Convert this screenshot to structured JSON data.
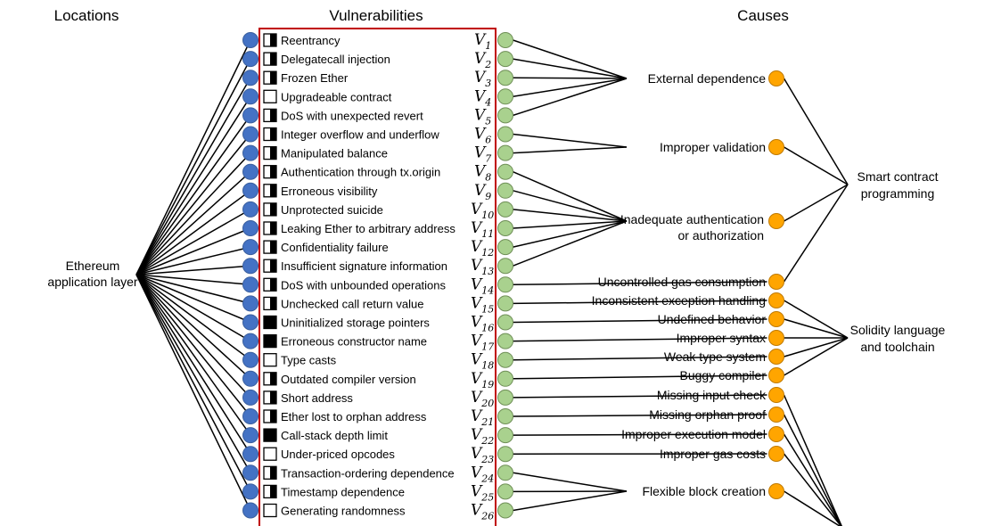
{
  "headers": {
    "locations": "Locations",
    "vulnerabilities": "Vulnerabilities",
    "causes": "Causes"
  },
  "location": {
    "line1": "Ethereum",
    "line2": "application layer"
  },
  "colors": {
    "location_node": "#4472C4",
    "vulnerability_node": "#A9D18E",
    "cause_node": "#FFA500",
    "box_border": "#C00000"
  },
  "vulnerabilities": [
    {
      "label": "Reentrancy",
      "symbol": "V",
      "index": "1",
      "level": "half"
    },
    {
      "label": "Delegatecall injection",
      "symbol": "V",
      "index": "2",
      "level": "half"
    },
    {
      "label": "Frozen Ether",
      "symbol": "V",
      "index": "3",
      "level": "half"
    },
    {
      "label": "Upgradeable contract",
      "symbol": "V",
      "index": "4",
      "level": "empty"
    },
    {
      "label": "DoS with unexpected revert",
      "symbol": "V",
      "index": "5",
      "level": "half"
    },
    {
      "label": "Integer overflow and underflow",
      "symbol": "V",
      "index": "6",
      "level": "half"
    },
    {
      "label": "Manipulated balance",
      "symbol": "V",
      "index": "7",
      "level": "half"
    },
    {
      "label": "Authentication through tx.origin",
      "symbol": "V",
      "index": "8",
      "level": "half"
    },
    {
      "label": "Erroneous visibility",
      "symbol": "V",
      "index": "9",
      "level": "half"
    },
    {
      "label": "Unprotected suicide",
      "symbol": "V",
      "index": "10",
      "level": "half"
    },
    {
      "label": "Leaking Ether to arbitrary address",
      "symbol": "V",
      "index": "11",
      "level": "half"
    },
    {
      "label": "Confidentiality failure",
      "symbol": "V",
      "index": "12",
      "level": "half"
    },
    {
      "label": "Insufficient signature information",
      "symbol": "V",
      "index": "13",
      "level": "half"
    },
    {
      "label": "DoS with unbounded operations",
      "symbol": "V",
      "index": "14",
      "level": "half"
    },
    {
      "label": "Unchecked call return value",
      "symbol": "V",
      "index": "15",
      "level": "half"
    },
    {
      "label": "Uninitialized storage pointers",
      "symbol": "V",
      "index": "16",
      "level": "full"
    },
    {
      "label": "Erroneous constructor name",
      "symbol": "V",
      "index": "17",
      "level": "full"
    },
    {
      "label": "Type casts",
      "symbol": "V",
      "index": "18",
      "level": "empty"
    },
    {
      "label": "Outdated compiler version",
      "symbol": "V",
      "index": "19",
      "level": "half"
    },
    {
      "label": "Short address",
      "symbol": "V",
      "index": "20",
      "level": "half"
    },
    {
      "label": "Ether lost to orphan address",
      "symbol": "V",
      "index": "21",
      "level": "half"
    },
    {
      "label": "Call-stack depth limit",
      "symbol": "V",
      "index": "22",
      "level": "full"
    },
    {
      "label": "Under-priced opcodes",
      "symbol": "V",
      "index": "23",
      "level": "empty"
    },
    {
      "label": "Transaction-ordering dependence",
      "symbol": "V",
      "index": "24",
      "level": "half"
    },
    {
      "label": "Timestamp dependence",
      "symbol": "V",
      "index": "25",
      "level": "half"
    },
    {
      "label": "Generating randomness",
      "symbol": "V",
      "index": "26",
      "level": "empty"
    }
  ],
  "causes": [
    {
      "lines": [
        "External dependence"
      ],
      "vulns": [
        1,
        2,
        3,
        4,
        5
      ],
      "group": 0
    },
    {
      "lines": [
        "Improper validation"
      ],
      "vulns": [
        6,
        7
      ],
      "group": 0
    },
    {
      "lines": [
        "Inadequate authentication",
        "or authorization"
      ],
      "vulns": [
        8,
        9,
        10,
        11,
        12,
        13
      ],
      "group": 0
    },
    {
      "lines": [
        "Uncontrolled gas consumption"
      ],
      "vulns": [
        14
      ],
      "group": 0
    },
    {
      "lines": [
        "Inconsistent exception handling"
      ],
      "vulns": [
        15
      ],
      "group": 1
    },
    {
      "lines": [
        "Undefined behavior"
      ],
      "vulns": [
        16
      ],
      "group": 1
    },
    {
      "lines": [
        "Improper syntax"
      ],
      "vulns": [
        17
      ],
      "group": 1
    },
    {
      "lines": [
        "Weak type system"
      ],
      "vulns": [
        18
      ],
      "group": 1
    },
    {
      "lines": [
        "Buggy compiler"
      ],
      "vulns": [
        19
      ],
      "group": 1
    },
    {
      "lines": [
        "Missing input check"
      ],
      "vulns": [
        20
      ],
      "group": 2
    },
    {
      "lines": [
        "Missing orphan proof"
      ],
      "vulns": [
        21
      ],
      "group": 2
    },
    {
      "lines": [
        "Improper execution model"
      ],
      "vulns": [
        22
      ],
      "group": 2
    },
    {
      "lines": [
        "Improper gas costs"
      ],
      "vulns": [
        23
      ],
      "group": 2
    },
    {
      "lines": [
        "Flexible block creation"
      ],
      "vulns": [
        24,
        25,
        26
      ],
      "group": 2
    }
  ],
  "categories": [
    {
      "lines": [
        "Smart contract",
        "programming"
      ]
    },
    {
      "lines": [
        "Solidity language",
        "and toolchain"
      ]
    },
    {
      "lines": []
    }
  ]
}
